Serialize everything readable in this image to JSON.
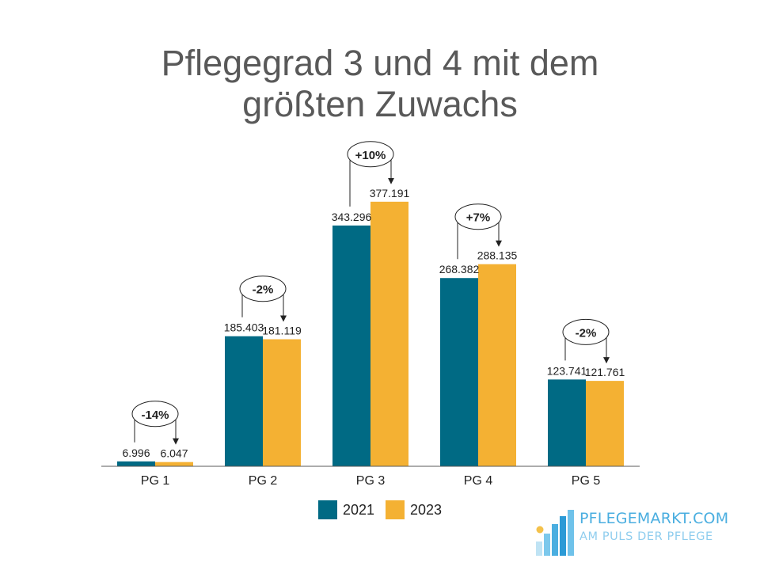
{
  "title": {
    "line1": "Pflegegrad 3 und 4 mit dem",
    "line2": "größten Zuwachs"
  },
  "colors": {
    "series_2021": "#006a84",
    "series_2023": "#f4b133",
    "axis": "#595959",
    "label": "#222222"
  },
  "chart_data": {
    "type": "bar",
    "categories": [
      "PG 1",
      "PG 2",
      "PG 3",
      "PG 4",
      "PG 5"
    ],
    "series": [
      {
        "name": "2021",
        "values": [
          6996,
          185403,
          343296,
          268382,
          123741
        ],
        "labels": [
          "6.996",
          "185.403",
          "343.296",
          "268.382",
          "123.741"
        ]
      },
      {
        "name": "2023",
        "values": [
          6047,
          181119,
          377191,
          288135,
          121761
        ],
        "labels": [
          "6.047",
          "181.119",
          "377.191",
          "288.135",
          "121.761"
        ]
      }
    ],
    "changes": [
      "-14%",
      "-2%",
      "+10%",
      "+7%",
      "-2%"
    ],
    "ylim": [
      0,
      400000
    ],
    "grid": false,
    "legend_position": "bottom",
    "xlabel": "",
    "ylabel": ""
  },
  "legend": {
    "item1": "2021",
    "item2": "2023"
  },
  "brand": {
    "name": "PFLEGEMARKT.COM",
    "tagline": "AM PULS DER PFLEGE"
  }
}
